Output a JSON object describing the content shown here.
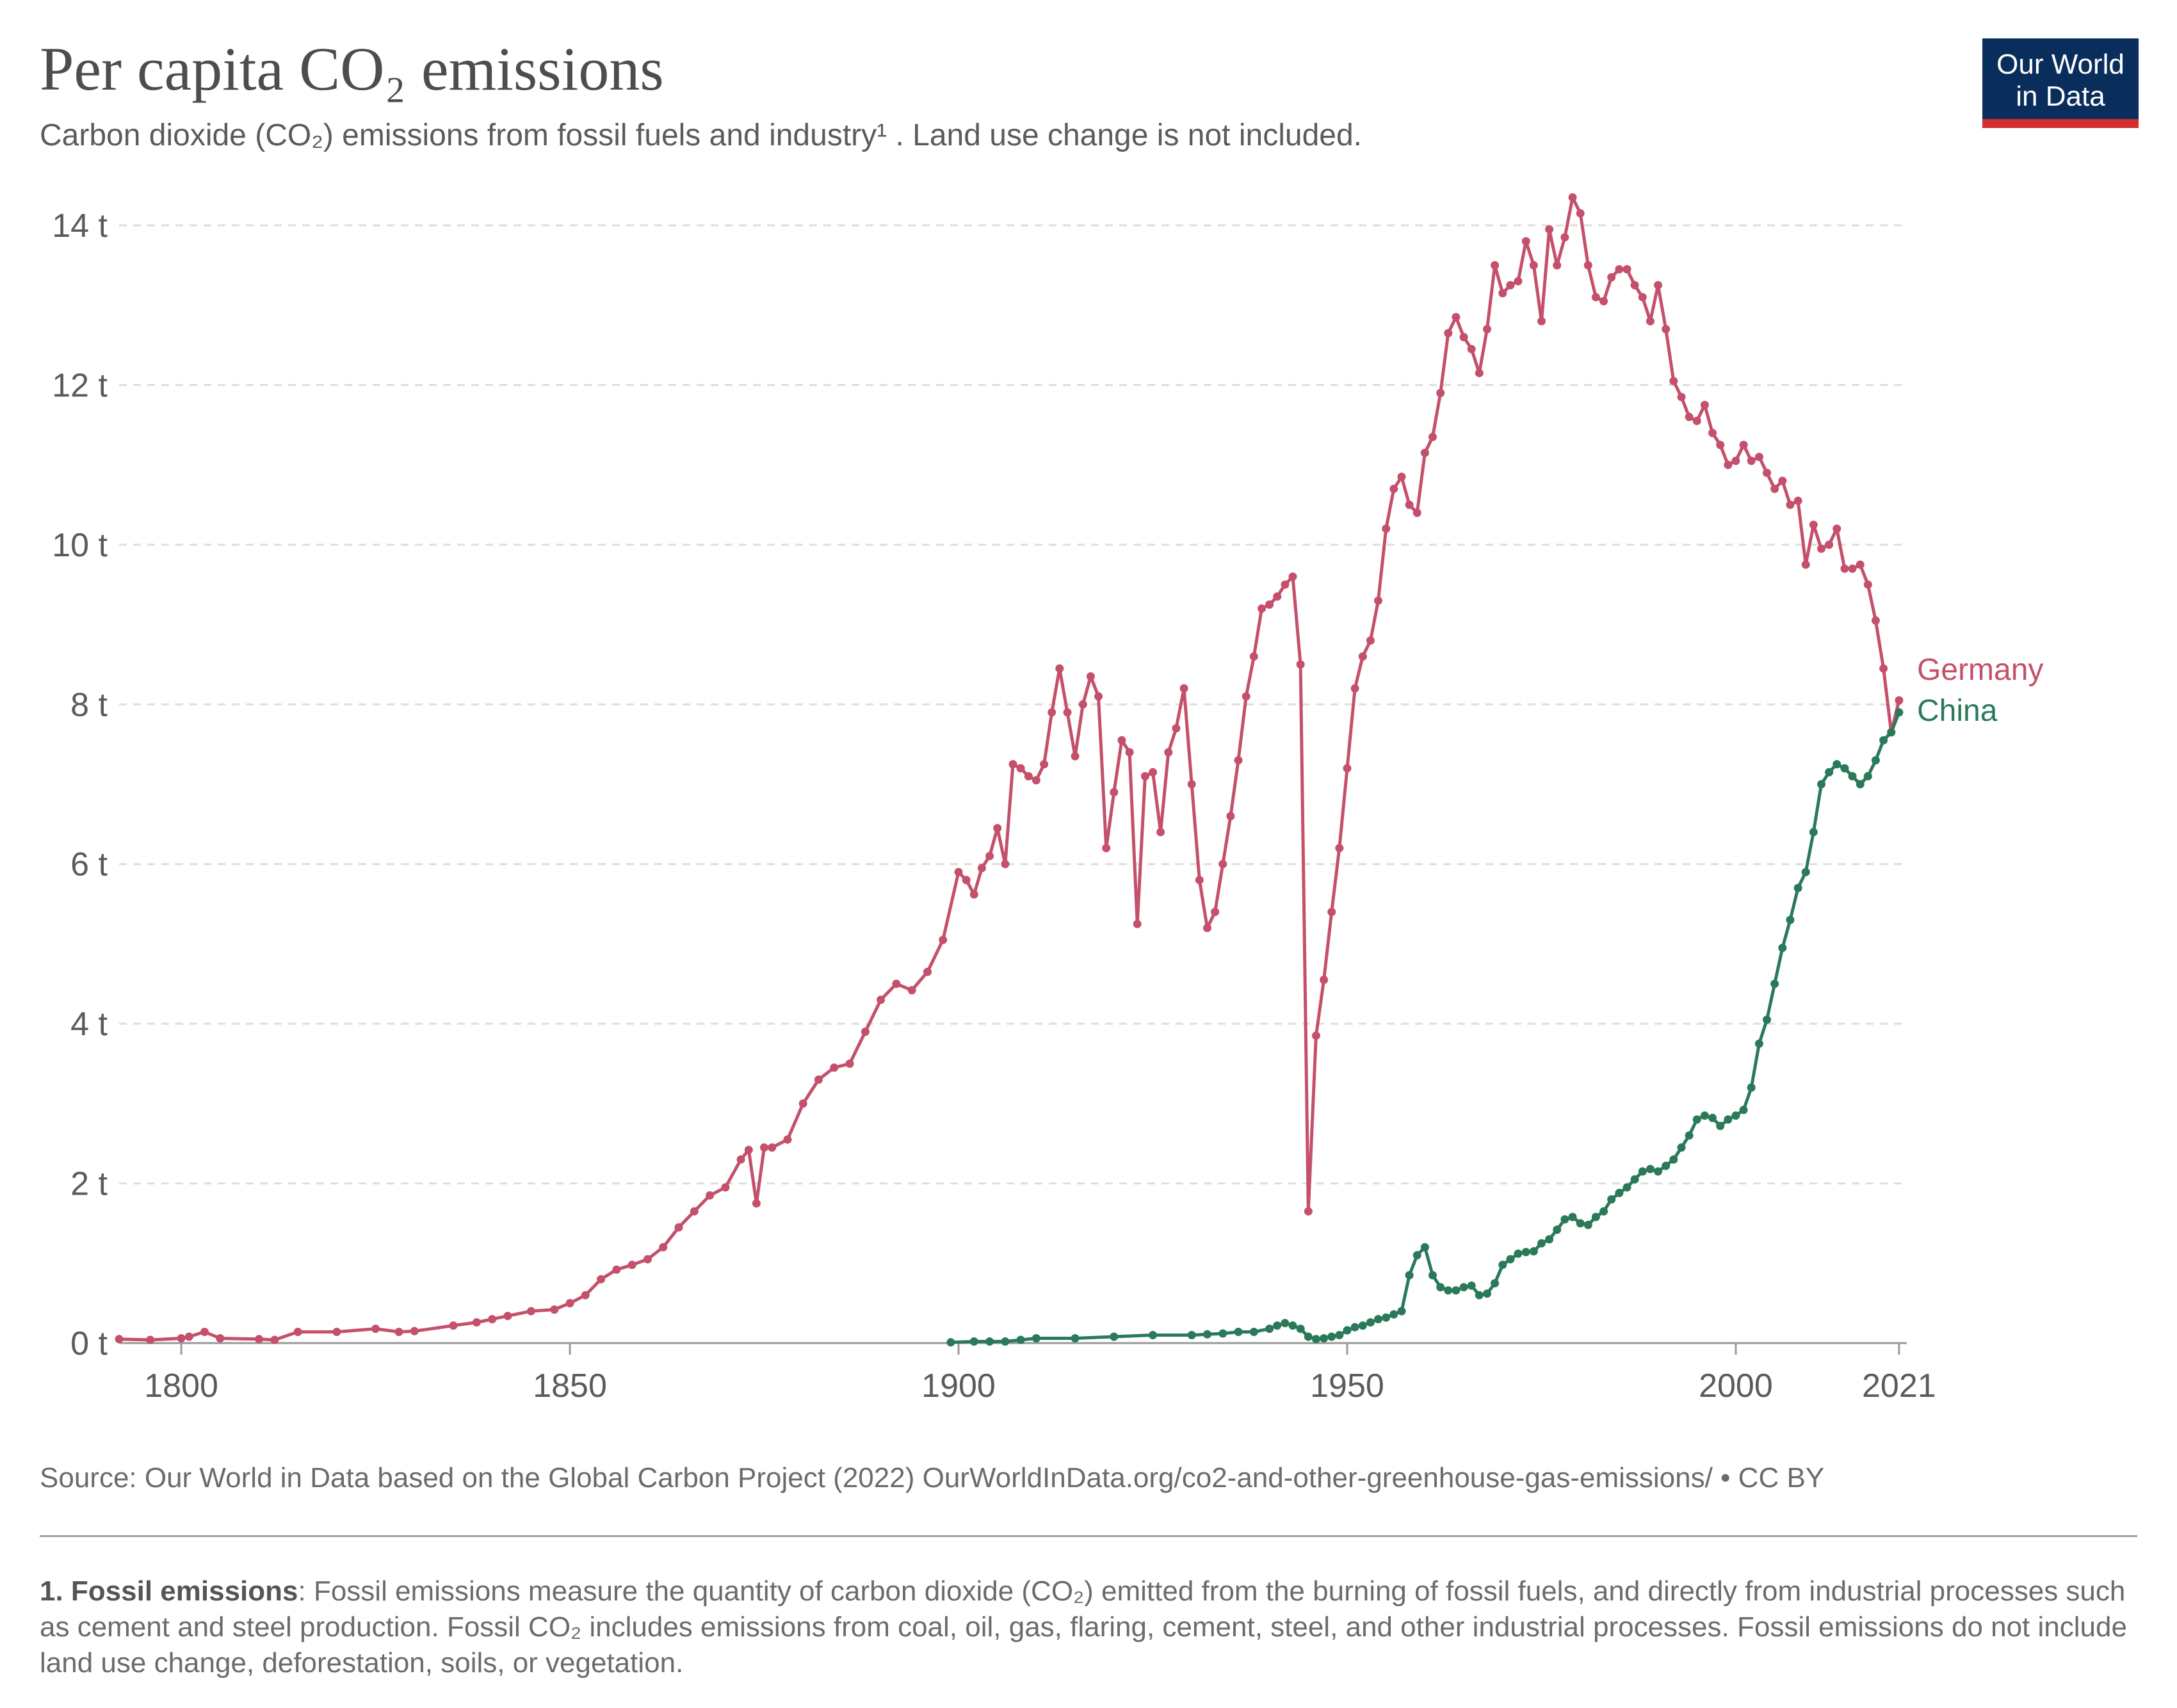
{
  "header": {
    "title": "Per capita CO₂ emissions",
    "subtitle": "Carbon dioxide (CO₂) emissions from fossil fuels and industry¹ . Land use change is not included.",
    "logo_line1": "Our World",
    "logo_line2": "in Data"
  },
  "footer": {
    "source": "Source: Our World in Data based on the Global Carbon Project (2022)   OurWorldInData.org/co2-and-other-greenhouse-gas-emissions/ • CC BY",
    "note_label": "1. Fossil emissions",
    "note_text": ": Fossil emissions measure the quantity of carbon dioxide (CO₂) emitted from the burning of fossil fuels, and directly from industrial processes such as cement and steel production. Fossil CO₂ includes emissions from coal, oil, gas, flaring, cement, steel, and other industrial processes. Fossil emissions do not include land use change, deforestation, soils, or vegetation."
  },
  "colors": {
    "germany": "#c4506b",
    "china": "#2a7a5a",
    "grid": "#dddddd",
    "axis": "#999999"
  },
  "chart_data": {
    "type": "line",
    "title": "Per capita CO₂ emissions",
    "xlabel": "",
    "ylabel": "",
    "xlim": [
      1792,
      2022
    ],
    "ylim": [
      0,
      14
    ],
    "x_ticks": [
      {
        "value": 1800,
        "label": "1800"
      },
      {
        "value": 1850,
        "label": "1850"
      },
      {
        "value": 1900,
        "label": "1900"
      },
      {
        "value": 1950,
        "label": "1950"
      },
      {
        "value": 2000,
        "label": "2000"
      },
      {
        "value": 2021,
        "label": "2021"
      }
    ],
    "y_ticks": [
      {
        "value": 0,
        "label": "0 t"
      },
      {
        "value": 2,
        "label": "2 t"
      },
      {
        "value": 4,
        "label": "4 t"
      },
      {
        "value": 6,
        "label": "6 t"
      },
      {
        "value": 8,
        "label": "8 t"
      },
      {
        "value": 10,
        "label": "10 t"
      },
      {
        "value": 12,
        "label": "12 t"
      },
      {
        "value": 14,
        "label": "14 t"
      }
    ],
    "grid": "horizontal dashed",
    "legend": "labels at line ends (right)",
    "series": [
      {
        "name": "Germany",
        "x": [
          1792,
          1796,
          1800,
          1801,
          1803,
          1805,
          1810,
          1812,
          1815,
          1820,
          1825,
          1828,
          1830,
          1835,
          1838,
          1840,
          1842,
          1845,
          1848,
          1850,
          1852,
          1854,
          1856,
          1858,
          1860,
          1862,
          1864,
          1866,
          1868,
          1870,
          1872,
          1873,
          1874,
          1875,
          1876,
          1878,
          1880,
          1882,
          1884,
          1886,
          1888,
          1890,
          1892,
          1894,
          1896,
          1898,
          1900,
          1901,
          1902,
          1903,
          1904,
          1905,
          1906,
          1907,
          1908,
          1909,
          1910,
          1911,
          1912,
          1913,
          1914,
          1915,
          1916,
          1917,
          1918,
          1919,
          1920,
          1921,
          1922,
          1923,
          1924,
          1925,
          1926,
          1927,
          1928,
          1929,
          1930,
          1931,
          1932,
          1933,
          1934,
          1935,
          1936,
          1937,
          1938,
          1939,
          1940,
          1941,
          1942,
          1943,
          1944,
          1945,
          1946,
          1947,
          1948,
          1949,
          1950,
          1951,
          1952,
          1953,
          1954,
          1955,
          1956,
          1957,
          1958,
          1959,
          1960,
          1961,
          1962,
          1963,
          1964,
          1965,
          1966,
          1967,
          1968,
          1969,
          1970,
          1971,
          1972,
          1973,
          1974,
          1975,
          1976,
          1977,
          1978,
          1979,
          1980,
          1981,
          1982,
          1983,
          1984,
          1985,
          1986,
          1987,
          1988,
          1989,
          1990,
          1991,
          1992,
          1993,
          1994,
          1995,
          1996,
          1997,
          1998,
          1999,
          2000,
          2001,
          2002,
          2003,
          2004,
          2005,
          2006,
          2007,
          2008,
          2009,
          2010,
          2011,
          2012,
          2013,
          2014,
          2015,
          2016,
          2017,
          2018,
          2019,
          2020,
          2021
        ],
        "values": [
          0.05,
          0.04,
          0.06,
          0.08,
          0.14,
          0.06,
          0.05,
          0.04,
          0.14,
          0.14,
          0.18,
          0.14,
          0.15,
          0.22,
          0.26,
          0.3,
          0.34,
          0.4,
          0.42,
          0.5,
          0.6,
          0.8,
          0.92,
          0.98,
          1.05,
          1.2,
          1.45,
          1.65,
          1.85,
          1.95,
          2.3,
          2.42,
          1.75,
          2.45,
          2.45,
          2.55,
          3.0,
          3.3,
          3.45,
          3.5,
          3.9,
          4.3,
          4.5,
          4.42,
          4.65,
          5.05,
          5.9,
          5.8,
          5.62,
          5.95,
          6.1,
          6.45,
          6.0,
          7.25,
          7.2,
          7.1,
          7.05,
          7.25,
          7.9,
          8.45,
          7.9,
          7.35,
          8.0,
          8.35,
          8.1,
          6.2,
          6.9,
          7.55,
          7.4,
          5.25,
          7.1,
          7.15,
          6.4,
          7.4,
          7.7,
          8.2,
          7.0,
          5.8,
          5.2,
          5.4,
          6.0,
          6.6,
          7.3,
          8.1,
          8.6,
          9.2,
          9.25,
          9.35,
          9.5,
          9.6,
          8.5,
          1.65,
          3.85,
          4.55,
          5.4,
          6.2,
          7.2,
          8.2,
          8.6,
          8.8,
          9.3,
          10.2,
          10.7,
          10.85,
          10.5,
          10.4,
          11.15,
          11.35,
          11.9,
          12.65,
          12.85,
          12.6,
          12.45,
          12.15,
          12.7,
          13.5,
          13.15,
          13.25,
          13.3,
          13.8,
          13.5,
          12.8,
          13.95,
          13.5,
          13.85,
          14.35,
          14.15,
          13.5,
          13.1,
          13.05,
          13.35,
          13.45,
          13.45,
          13.25,
          13.1,
          12.8,
          13.25,
          12.7,
          12.05,
          11.85,
          11.6,
          11.55,
          11.75,
          11.4,
          11.25,
          11.0,
          11.05,
          11.25,
          11.05,
          11.1,
          10.9,
          10.7,
          10.8,
          10.5,
          10.55,
          9.75,
          10.25,
          9.95,
          10.0,
          10.2,
          9.7,
          9.7,
          9.75,
          9.5,
          9.05,
          8.45,
          7.65,
          8.05
        ]
      },
      {
        "name": "China",
        "x": [
          1899,
          1902,
          1904,
          1906,
          1908,
          1910,
          1915,
          1920,
          1925,
          1930,
          1932,
          1934,
          1936,
          1938,
          1940,
          1941,
          1942,
          1943,
          1944,
          1945,
          1946,
          1947,
          1948,
          1949,
          1950,
          1951,
          1952,
          1953,
          1954,
          1955,
          1956,
          1957,
          1958,
          1959,
          1960,
          1961,
          1962,
          1963,
          1964,
          1965,
          1966,
          1967,
          1968,
          1969,
          1970,
          1971,
          1972,
          1973,
          1974,
          1975,
          1976,
          1977,
          1978,
          1979,
          1980,
          1981,
          1982,
          1983,
          1984,
          1985,
          1986,
          1987,
          1988,
          1989,
          1990,
          1991,
          1992,
          1993,
          1994,
          1995,
          1996,
          1997,
          1998,
          1999,
          2000,
          2001,
          2002,
          2003,
          2004,
          2005,
          2006,
          2007,
          2008,
          2009,
          2010,
          2011,
          2012,
          2013,
          2014,
          2015,
          2016,
          2017,
          2018,
          2019,
          2020,
          2021
        ],
        "values": [
          0.01,
          0.02,
          0.02,
          0.02,
          0.04,
          0.06,
          0.06,
          0.08,
          0.1,
          0.1,
          0.11,
          0.12,
          0.14,
          0.14,
          0.18,
          0.22,
          0.25,
          0.22,
          0.18,
          0.08,
          0.05,
          0.06,
          0.08,
          0.1,
          0.16,
          0.2,
          0.22,
          0.26,
          0.3,
          0.32,
          0.36,
          0.4,
          0.85,
          1.1,
          1.2,
          0.85,
          0.7,
          0.66,
          0.66,
          0.7,
          0.72,
          0.6,
          0.62,
          0.75,
          0.98,
          1.05,
          1.12,
          1.14,
          1.15,
          1.25,
          1.3,
          1.42,
          1.55,
          1.58,
          1.5,
          1.48,
          1.58,
          1.65,
          1.8,
          1.88,
          1.95,
          2.05,
          2.15,
          2.18,
          2.15,
          2.22,
          2.3,
          2.45,
          2.6,
          2.8,
          2.85,
          2.82,
          2.72,
          2.8,
          2.85,
          2.92,
          3.2,
          3.75,
          4.05,
          4.5,
          4.95,
          5.3,
          5.7,
          5.9,
          6.4,
          7.0,
          7.15,
          7.25,
          7.2,
          7.1,
          7.0,
          7.1,
          7.3,
          7.55,
          7.65,
          7.9
        ]
      }
    ]
  }
}
